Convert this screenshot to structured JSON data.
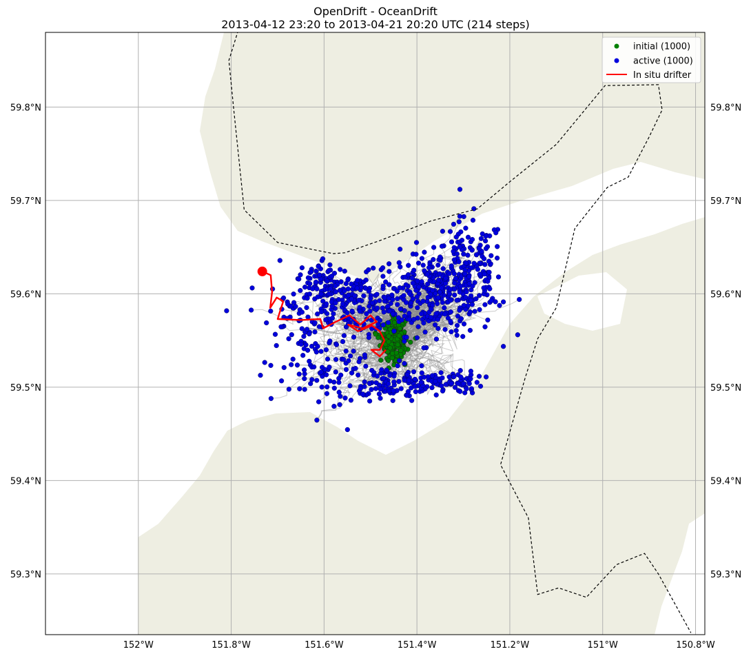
{
  "title": {
    "line1": "OpenDrift - OceanDrift",
    "line2": "2013-04-12 23:20 to 2013-04-21 20:20 UTC (214 steps)"
  },
  "chart_data": {
    "type": "scatter",
    "title": "OpenDrift - OceanDrift",
    "subtitle": "2013-04-12 23:20 to 2013-04-21 20:20 UTC (214 steps)",
    "xlabel": "",
    "ylabel": "",
    "xlim": [
      -152.2,
      -150.78
    ],
    "ylim": [
      59.235,
      59.88
    ],
    "grid": true,
    "legend_position": "top-right",
    "x_ticks": [
      {
        "value": -152.0,
        "label": "152°W"
      },
      {
        "value": -151.8,
        "label": "151.8°W"
      },
      {
        "value": -151.6,
        "label": "151.6°W"
      },
      {
        "value": -151.4,
        "label": "151.4°W"
      },
      {
        "value": -151.2,
        "label": "151.2°W"
      },
      {
        "value": -151.0,
        "label": "151°W"
      },
      {
        "value": -150.8,
        "label": "150.8°W"
      }
    ],
    "y_ticks": [
      {
        "value": 59.3,
        "label": "59.3°N"
      },
      {
        "value": 59.4,
        "label": "59.4°N"
      },
      {
        "value": 59.5,
        "label": "59.5°N"
      },
      {
        "value": 59.6,
        "label": "59.6°N"
      },
      {
        "value": 59.7,
        "label": "59.7°N"
      },
      {
        "value": 59.8,
        "label": "59.8°N"
      }
    ],
    "legend": [
      {
        "label": "initial (1000)",
        "color": "#008000",
        "marker": "dot"
      },
      {
        "label": "active (1000)",
        "color": "#0000dd",
        "marker": "dot"
      },
      {
        "label": "In situ drifter",
        "color": "#ff0000",
        "marker": "line"
      }
    ],
    "colors": {
      "land": "#eeeee2",
      "grid": "#b0b0b0",
      "trajectory": "#8c8c8c",
      "initial": "#008000",
      "active": "#0000dd",
      "drifter": "#ff0000",
      "boundary": "#000000"
    },
    "initial_cluster": {
      "center": [
        -151.45,
        59.549
      ],
      "spread": [
        0.022,
        0.017
      ],
      "count": 1000
    },
    "active_clusters": [
      {
        "center": [
          -151.36,
          59.6
        ],
        "spread": [
          0.065,
          0.022
        ],
        "weight": 0.32
      },
      {
        "center": [
          -151.29,
          59.63
        ],
        "spread": [
          0.04,
          0.025
        ],
        "weight": 0.12
      },
      {
        "center": [
          -151.54,
          59.59
        ],
        "spread": [
          0.06,
          0.015
        ],
        "weight": 0.18
      },
      {
        "center": [
          -151.6,
          59.615
        ],
        "spread": [
          0.03,
          0.012
        ],
        "weight": 0.06
      },
      {
        "center": [
          -151.47,
          59.505
        ],
        "spread": [
          0.05,
          0.01
        ],
        "weight": 0.1
      },
      {
        "center": [
          -151.34,
          59.505
        ],
        "spread": [
          0.04,
          0.006
        ],
        "weight": 0.08
      },
      {
        "center": [
          -151.58,
          59.52
        ],
        "spread": [
          0.06,
          0.025
        ],
        "weight": 0.08
      },
      {
        "center": [
          -151.66,
          59.57
        ],
        "spread": [
          0.05,
          0.03
        ],
        "weight": 0.06
      }
    ],
    "drifter_track": [
      [
        -151.733,
        59.624
      ],
      [
        -151.715,
        59.62
      ],
      [
        -151.712,
        59.602
      ],
      [
        -151.716,
        59.585
      ],
      [
        -151.702,
        59.596
      ],
      [
        -151.688,
        59.592
      ],
      [
        -151.695,
        59.581
      ],
      [
        -151.7,
        59.573
      ],
      [
        -151.65,
        59.572
      ],
      [
        -151.608,
        59.573
      ],
      [
        -151.602,
        59.563
      ],
      [
        -151.575,
        59.57
      ],
      [
        -151.545,
        59.577
      ],
      [
        -151.522,
        59.567
      ],
      [
        -151.5,
        59.577
      ],
      [
        -151.487,
        59.57
      ],
      [
        -151.517,
        59.563
      ],
      [
        -151.548,
        59.567
      ],
      [
        -151.527,
        59.56
      ],
      [
        -151.497,
        59.566
      ],
      [
        -151.48,
        59.56
      ],
      [
        -151.47,
        59.55
      ],
      [
        -151.48,
        59.54
      ],
      [
        -151.498,
        59.54
      ],
      [
        -151.48,
        59.533
      ],
      [
        -151.467,
        59.54
      ]
    ],
    "drifter_start": [
      -151.733,
      59.624
    ],
    "boundary_upper": [
      [
        -151.785,
        59.882
      ],
      [
        -151.805,
        59.85
      ],
      [
        -151.795,
        59.8
      ],
      [
        -151.772,
        59.69
      ],
      [
        -151.7,
        59.655
      ],
      [
        -151.58,
        59.643
      ],
      [
        -151.555,
        59.644
      ],
      [
        -151.48,
        59.657
      ],
      [
        -151.37,
        59.678
      ],
      [
        -151.27,
        59.691
      ],
      [
        -151.2,
        59.72
      ],
      [
        -151.1,
        59.76
      ],
      [
        -151.05,
        59.79
      ],
      [
        -150.995,
        59.823
      ],
      [
        -150.88,
        59.824
      ],
      [
        -150.872,
        59.797
      ],
      [
        -150.9,
        59.768
      ],
      [
        -150.945,
        59.725
      ],
      [
        -150.99,
        59.714
      ],
      [
        -151.06,
        59.67
      ],
      [
        -151.1,
        59.585
      ],
      [
        -151.14,
        59.552
      ],
      [
        -151.167,
        59.51
      ],
      [
        -151.22,
        59.417
      ],
      [
        -151.16,
        59.36
      ],
      [
        -151.14,
        59.278
      ],
      [
        -151.095,
        59.285
      ],
      [
        -151.035,
        59.275
      ],
      [
        -150.97,
        59.31
      ],
      [
        -150.91,
        59.322
      ],
      [
        -150.88,
        59.3
      ],
      [
        -150.81,
        59.237
      ]
    ]
  }
}
